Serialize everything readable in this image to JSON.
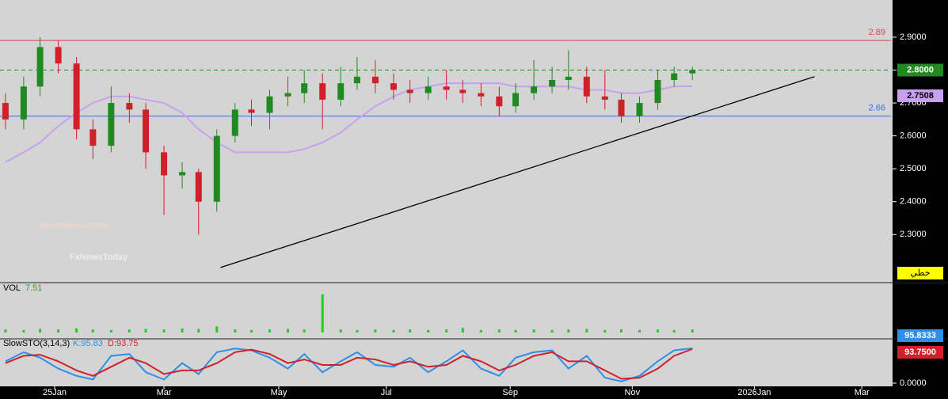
{
  "chart_data": [
    {
      "type": "candlestick",
      "watermark": [
        "economies.com",
        "FxNewsToday"
      ],
      "badge": "خطي",
      "xlim": [
        0,
        489
      ],
      "x": [
        3,
        13,
        22,
        32,
        42,
        51,
        61,
        71,
        80,
        90,
        100,
        109,
        119,
        129,
        138,
        148,
        158,
        167,
        177,
        187,
        196,
        206,
        216,
        225,
        235,
        245,
        254,
        264,
        274,
        283,
        293,
        303,
        312,
        322,
        332,
        341,
        351,
        361,
        370,
        380
      ],
      "open": [
        2.7,
        2.65,
        2.75,
        2.87,
        2.82,
        2.62,
        2.57,
        2.7,
        2.68,
        2.55,
        2.48,
        2.49,
        2.4,
        2.6,
        2.68,
        2.67,
        2.72,
        2.73,
        2.76,
        2.71,
        2.76,
        2.78,
        2.76,
        2.74,
        2.73,
        2.75,
        2.74,
        2.73,
        2.72,
        2.69,
        2.73,
        2.75,
        2.77,
        2.78,
        2.72,
        2.71,
        2.66,
        2.7,
        2.77,
        2.79
      ],
      "high": [
        2.73,
        2.78,
        2.9,
        2.89,
        2.84,
        2.65,
        2.75,
        2.73,
        2.7,
        2.57,
        2.52,
        2.5,
        2.62,
        2.7,
        2.71,
        2.74,
        2.78,
        2.8,
        2.79,
        2.81,
        2.84,
        2.83,
        2.79,
        2.77,
        2.78,
        2.8,
        2.77,
        2.76,
        2.75,
        2.76,
        2.83,
        2.81,
        2.86,
        2.81,
        2.8,
        2.73,
        2.72,
        2.8,
        2.81,
        2.81
      ],
      "low": [
        2.62,
        2.62,
        2.72,
        2.79,
        2.59,
        2.53,
        2.55,
        2.64,
        2.5,
        2.36,
        2.44,
        2.3,
        2.37,
        2.58,
        2.63,
        2.62,
        2.69,
        2.7,
        2.62,
        2.69,
        2.74,
        2.73,
        2.71,
        2.7,
        2.71,
        2.71,
        2.7,
        2.69,
        2.66,
        2.67,
        2.71,
        2.73,
        2.74,
        2.7,
        2.68,
        2.64,
        2.64,
        2.68,
        2.75,
        2.77
      ],
      "close": [
        2.65,
        2.75,
        2.87,
        2.82,
        2.62,
        2.57,
        2.7,
        2.68,
        2.55,
        2.48,
        2.49,
        2.4,
        2.6,
        2.68,
        2.67,
        2.72,
        2.73,
        2.76,
        2.71,
        2.76,
        2.78,
        2.76,
        2.74,
        2.73,
        2.75,
        2.74,
        2.73,
        2.72,
        2.69,
        2.73,
        2.75,
        2.77,
        2.78,
        2.72,
        2.71,
        2.66,
        2.7,
        2.77,
        2.79,
        2.8
      ],
      "up_color": "#1f8a1f",
      "down_color": "#d0202a",
      "moving_average": {
        "color": "#c8a0f0",
        "values": [
          2.52,
          2.55,
          2.58,
          2.63,
          2.67,
          2.7,
          2.72,
          2.72,
          2.71,
          2.7,
          2.67,
          2.62,
          2.58,
          2.55,
          2.55,
          2.55,
          2.55,
          2.56,
          2.58,
          2.61,
          2.65,
          2.69,
          2.72,
          2.74,
          2.75,
          2.76,
          2.76,
          2.76,
          2.76,
          2.75,
          2.75,
          2.75,
          2.75,
          2.74,
          2.74,
          2.73,
          2.73,
          2.74,
          2.75,
          2.7508
        ]
      },
      "levels": [
        {
          "value": 2.89,
          "color": "#d04a4a",
          "dashed": false,
          "show_label": true
        },
        {
          "value": 2.8,
          "value_label": "2.8000",
          "color": "#1f8a1f",
          "dashed": true,
          "show_label": false
        },
        {
          "value": 2.66,
          "color": "#3a6ee8",
          "dashed": false,
          "show_label": true
        }
      ],
      "trendline": {
        "x": [
          121,
          447
        ],
        "values": [
          2.2,
          2.78
        ],
        "color": "#000000"
      },
      "ylim": [
        2.154,
        3.013
      ],
      "yticks": [
        {
          "value": 2.3,
          "label": "2.3000"
        },
        {
          "value": 2.4,
          "label": "2.4000"
        },
        {
          "value": 2.5,
          "label": "2.5000"
        },
        {
          "value": 2.6,
          "label": "2.6000"
        },
        {
          "value": 2.7,
          "label": "2.7000"
        },
        {
          "value": 2.8,
          "label": "2.8000"
        },
        {
          "value": 2.9,
          "label": "2.9000"
        }
      ]
    },
    {
      "type": "bar",
      "title": "VOL",
      "current": 7.51,
      "color": "#22cc22",
      "xlim": [
        0,
        489
      ],
      "x": [
        3,
        13,
        22,
        32,
        42,
        51,
        61,
        71,
        80,
        90,
        100,
        109,
        119,
        129,
        138,
        148,
        158,
        167,
        177,
        187,
        196,
        206,
        216,
        225,
        235,
        245,
        254,
        264,
        274,
        283,
        293,
        303,
        312,
        322,
        332,
        341,
        351,
        361,
        370,
        380
      ],
      "values": [
        0.6,
        0.5,
        0.7,
        0.6,
        0.8,
        0.6,
        0.5,
        0.6,
        0.7,
        0.6,
        0.8,
        0.7,
        1.2,
        0.6,
        0.5,
        0.6,
        0.7,
        0.6,
        7.51,
        0.6,
        0.5,
        0.6,
        0.5,
        0.6,
        0.5,
        0.6,
        0.9,
        0.5,
        0.6,
        0.5,
        0.6,
        0.5,
        0.6,
        0.7,
        0.5,
        0.6,
        0.5,
        0.6,
        0.5,
        0.6
      ],
      "ylim": [
        0,
        9
      ]
    },
    {
      "type": "line",
      "title": "SlowSTO(3,14,3)",
      "k_label": "K:95.83",
      "d_label": "D:93.75",
      "xlim": [
        0,
        489
      ],
      "x": [
        3,
        13,
        22,
        32,
        42,
        51,
        61,
        71,
        80,
        90,
        100,
        109,
        119,
        129,
        138,
        148,
        158,
        167,
        177,
        187,
        196,
        206,
        216,
        225,
        235,
        245,
        254,
        264,
        274,
        283,
        293,
        303,
        312,
        322,
        332,
        341,
        351,
        361,
        370,
        380
      ],
      "series": [
        {
          "name": "K",
          "color": "#2f8ee8",
          "values": [
            60,
            85,
            70,
            40,
            20,
            10,
            75,
            80,
            30,
            10,
            55,
            25,
            85,
            95,
            90,
            70,
            40,
            80,
            30,
            60,
            85,
            50,
            45,
            70,
            30,
            60,
            90,
            40,
            20,
            70,
            85,
            90,
            40,
            75,
            15,
            5,
            20,
            60,
            90,
            95.8333
          ]
        },
        {
          "name": "D",
          "color": "#d0202a",
          "value_label": "93.7500",
          "values": [
            55,
            75,
            78,
            60,
            35,
            20,
            45,
            70,
            55,
            25,
            35,
            35,
            55,
            85,
            92,
            80,
            55,
            65,
            50,
            50,
            70,
            65,
            50,
            60,
            45,
            50,
            75,
            60,
            35,
            50,
            75,
            85,
            60,
            60,
            35,
            12,
            15,
            40,
            75,
            93.75
          ]
        }
      ],
      "ylim": [
        0,
        100
      ],
      "yticks": [
        {
          "value": 0,
          "label": "0.0000"
        }
      ],
      "xticks": [
        {
          "value": 30,
          "label": "25Jan"
        },
        {
          "value": 90,
          "label": "Mar"
        },
        {
          "value": 153,
          "label": "May"
        },
        {
          "value": 212,
          "label": "Jul"
        },
        {
          "value": 280,
          "label": "Sep"
        },
        {
          "value": 347,
          "label": "Nov"
        },
        {
          "value": 414,
          "label": "2026Jan"
        },
        {
          "value": 473,
          "label": "Mar"
        }
      ]
    }
  ]
}
